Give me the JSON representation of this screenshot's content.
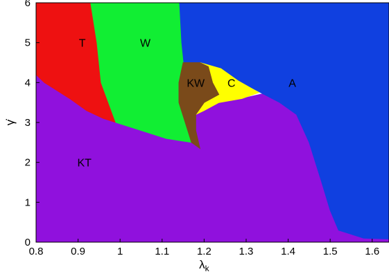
{
  "chart_data": {
    "type": "area",
    "xlabel": "λ",
    "xlabel_sub": "k",
    "ylabel": "γ̇",
    "xlim": [
      0.8,
      1.64
    ],
    "ylim": [
      0,
      6
    ],
    "x_ticks": [
      "0.8",
      "0.9",
      "1",
      "1.1",
      "1.2",
      "1.3",
      "1.4",
      "1.5",
      "1.6"
    ],
    "y_ticks": [
      "0",
      "1",
      "2",
      "3",
      "4",
      "5",
      "6"
    ],
    "grid": false,
    "legend": "none",
    "regions": [
      {
        "name": "T",
        "color": "#ee1111",
        "label_at": [
          0.91,
          5.0
        ],
        "boundary": [
          [
            0.8,
            6
          ],
          [
            0.93,
            6
          ],
          [
            0.945,
            5.0
          ],
          [
            0.955,
            4.0
          ],
          [
            0.99,
            3.0
          ],
          [
            0.96,
            3.1
          ],
          [
            0.92,
            3.3
          ],
          [
            0.88,
            3.6
          ],
          [
            0.82,
            4.0
          ],
          [
            0.8,
            4.2
          ]
        ]
      },
      {
        "name": "W",
        "color": "#11ee33",
        "label_at": [
          1.06,
          5.0
        ],
        "boundary": [
          [
            0.93,
            6
          ],
          [
            1.14,
            6
          ],
          [
            1.145,
            5.0
          ],
          [
            1.15,
            4.5
          ],
          [
            1.14,
            4.0
          ],
          [
            1.14,
            3.5
          ],
          [
            1.17,
            2.5
          ],
          [
            1.11,
            2.6
          ],
          [
            1.05,
            2.8
          ],
          [
            0.99,
            3.0
          ],
          [
            0.955,
            4.0
          ],
          [
            0.945,
            5.0
          ]
        ]
      },
      {
        "name": "KW",
        "color": "#7a4a1a",
        "label_at": [
          1.18,
          4.0
        ],
        "boundary": [
          [
            1.15,
            4.5
          ],
          [
            1.19,
            4.5
          ],
          [
            1.21,
            4.4
          ],
          [
            1.22,
            4.0
          ],
          [
            1.235,
            3.7
          ],
          [
            1.2,
            3.5
          ],
          [
            1.18,
            3.2
          ],
          [
            1.18,
            2.8
          ],
          [
            1.19,
            2.35
          ],
          [
            1.17,
            2.5
          ],
          [
            1.14,
            3.5
          ],
          [
            1.14,
            4.0
          ]
        ]
      },
      {
        "name": "C",
        "color": "#ffff00",
        "label_at": [
          1.265,
          4.0
        ],
        "boundary": [
          [
            1.19,
            4.5
          ],
          [
            1.24,
            4.35
          ],
          [
            1.28,
            4.05
          ],
          [
            1.33,
            3.75
          ],
          [
            1.29,
            3.6
          ],
          [
            1.235,
            3.5
          ],
          [
            1.2,
            3.3
          ],
          [
            1.18,
            3.2
          ],
          [
            1.2,
            3.5
          ],
          [
            1.235,
            3.7
          ],
          [
            1.22,
            4.0
          ],
          [
            1.21,
            4.4
          ]
        ]
      },
      {
        "name": "A",
        "color": "#1040e0",
        "label_at": [
          1.41,
          4.0
        ],
        "boundary": [
          [
            1.14,
            6
          ],
          [
            1.64,
            6
          ],
          [
            1.64,
            0.08
          ],
          [
            1.58,
            0.1
          ],
          [
            1.52,
            0.3
          ],
          [
            1.5,
            0.8
          ],
          [
            1.48,
            1.5
          ],
          [
            1.45,
            2.5
          ],
          [
            1.42,
            3.2
          ],
          [
            1.38,
            3.5
          ],
          [
            1.34,
            3.72
          ],
          [
            1.28,
            4.05
          ],
          [
            1.24,
            4.35
          ],
          [
            1.19,
            4.5
          ],
          [
            1.15,
            4.5
          ],
          [
            1.145,
            5.0
          ]
        ]
      },
      {
        "name": "KT",
        "color": "#9011dd",
        "label_at": [
          0.915,
          2.0
        ],
        "boundary": [
          [
            0.8,
            0
          ],
          [
            1.64,
            0
          ],
          [
            1.64,
            0.08
          ],
          [
            1.58,
            0.1
          ],
          [
            1.52,
            0.3
          ],
          [
            1.5,
            0.8
          ],
          [
            1.48,
            1.5
          ],
          [
            1.45,
            2.5
          ],
          [
            1.42,
            3.2
          ],
          [
            1.38,
            3.5
          ],
          [
            1.34,
            3.72
          ],
          [
            1.29,
            3.6
          ],
          [
            1.235,
            3.5
          ],
          [
            1.2,
            3.3
          ],
          [
            1.18,
            3.2
          ],
          [
            1.18,
            2.8
          ],
          [
            1.19,
            2.35
          ],
          [
            1.17,
            2.5
          ],
          [
            1.11,
            2.6
          ],
          [
            1.05,
            2.8
          ],
          [
            0.99,
            3.0
          ],
          [
            0.96,
            3.1
          ],
          [
            0.92,
            3.3
          ],
          [
            0.88,
            3.6
          ],
          [
            0.82,
            4.0
          ],
          [
            0.8,
            4.2
          ]
        ]
      }
    ]
  }
}
